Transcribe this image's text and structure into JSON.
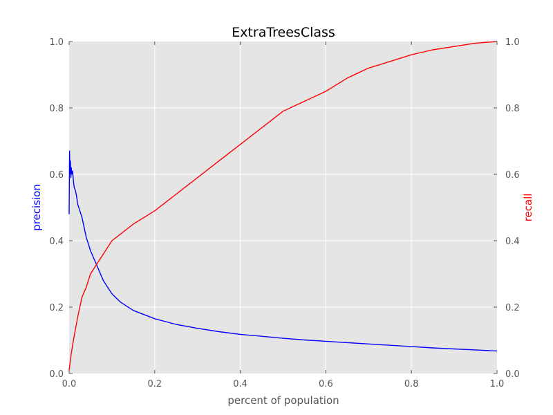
{
  "chart_data": {
    "type": "line",
    "title": "ExtraTreesClass",
    "xlabel": "percent of population",
    "ylabel_left": "precision",
    "ylabel_right": "recall",
    "xlim": [
      0,
      1
    ],
    "ylim_left": [
      0,
      1
    ],
    "ylim_right": [
      0,
      1
    ],
    "grid": true,
    "x_ticks": [
      "0.0",
      "0.2",
      "0.4",
      "0.6",
      "0.8",
      "1.0"
    ],
    "y_ticks_left": [
      "0.0",
      "0.2",
      "0.4",
      "0.6",
      "0.8",
      "1.0"
    ],
    "y_ticks_right": [
      "0.0",
      "0.2",
      "0.4",
      "0.6",
      "0.8",
      "1.0"
    ],
    "series": [
      {
        "name": "precision",
        "axis": "left",
        "color": "#0000ff",
        "x": [
          0.0,
          0.001,
          0.002,
          0.003,
          0.004,
          0.005,
          0.006,
          0.008,
          0.01,
          0.012,
          0.015,
          0.018,
          0.02,
          0.025,
          0.03,
          0.035,
          0.04,
          0.045,
          0.05,
          0.06,
          0.07,
          0.08,
          0.09,
          0.1,
          0.12,
          0.15,
          0.2,
          0.25,
          0.3,
          0.35,
          0.4,
          0.45,
          0.5,
          0.55,
          0.6,
          0.65,
          0.7,
          0.75,
          0.8,
          0.85,
          0.9,
          0.95,
          1.0
        ],
        "y": [
          0.48,
          0.67,
          0.6,
          0.64,
          0.59,
          0.62,
          0.6,
          0.61,
          0.58,
          0.56,
          0.55,
          0.53,
          0.51,
          0.49,
          0.47,
          0.44,
          0.41,
          0.39,
          0.37,
          0.34,
          0.31,
          0.28,
          0.26,
          0.24,
          0.215,
          0.19,
          0.165,
          0.148,
          0.136,
          0.126,
          0.118,
          0.112,
          0.106,
          0.101,
          0.097,
          0.093,
          0.089,
          0.085,
          0.081,
          0.077,
          0.074,
          0.071,
          0.068
        ]
      },
      {
        "name": "recall",
        "axis": "right",
        "color": "#ff0000",
        "x": [
          0.0,
          0.005,
          0.01,
          0.02,
          0.03,
          0.04,
          0.05,
          0.06,
          0.07,
          0.08,
          0.1,
          0.12,
          0.15,
          0.2,
          0.25,
          0.3,
          0.35,
          0.4,
          0.45,
          0.5,
          0.55,
          0.6,
          0.65,
          0.7,
          0.75,
          0.8,
          0.85,
          0.9,
          0.95,
          1.0
        ],
        "y": [
          0.01,
          0.06,
          0.1,
          0.17,
          0.23,
          0.26,
          0.3,
          0.32,
          0.34,
          0.36,
          0.4,
          0.42,
          0.45,
          0.49,
          0.54,
          0.59,
          0.64,
          0.69,
          0.74,
          0.79,
          0.82,
          0.85,
          0.89,
          0.92,
          0.94,
          0.96,
          0.975,
          0.985,
          0.995,
          1.0
        ]
      }
    ]
  }
}
